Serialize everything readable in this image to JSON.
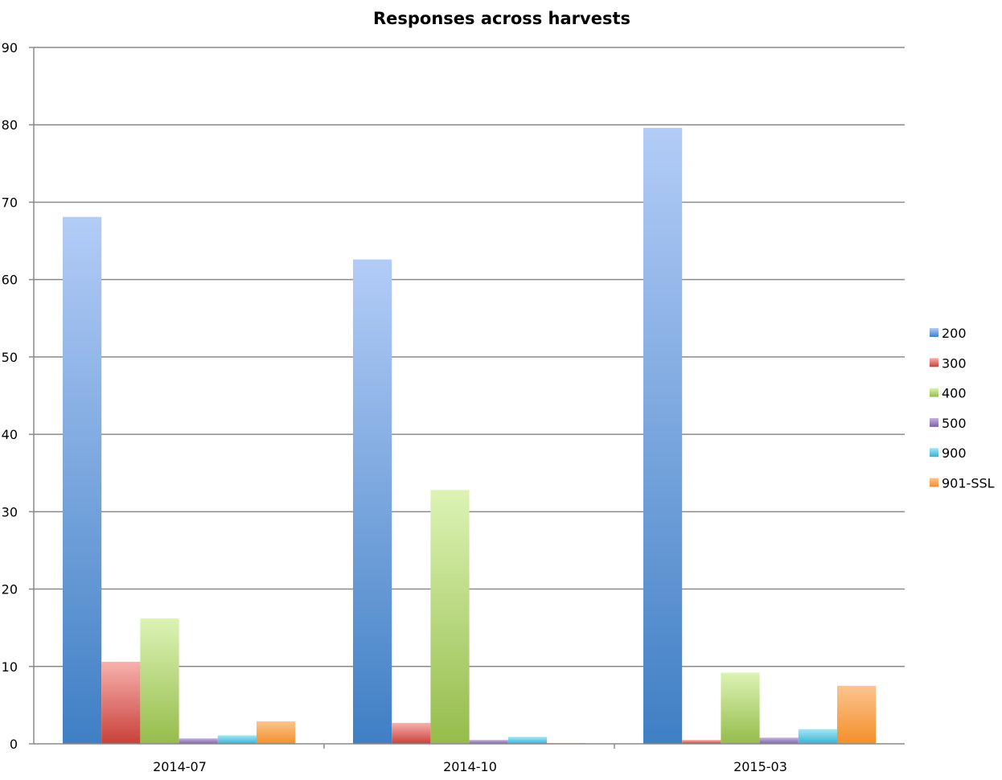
{
  "chart_data": {
    "type": "bar",
    "title": "Responses across harvests",
    "xlabel": "",
    "ylabel": "",
    "categories": [
      "2014-07",
      "2014-10",
      "2015-03"
    ],
    "ylim": [
      0,
      90
    ],
    "yticks": [
      0,
      10,
      20,
      30,
      40,
      50,
      60,
      70,
      80,
      90
    ],
    "grid": true,
    "legend_position": "right",
    "series": [
      {
        "name": "200",
        "values": [
          68.1,
          62.6,
          79.6
        ],
        "color_top": "#b3ccf7",
        "color_bottom": "#3f7fc4"
      },
      {
        "name": "300",
        "values": [
          10.6,
          2.7,
          0.5
        ],
        "color_top": "#f7b1ad",
        "color_bottom": "#c9403a"
      },
      {
        "name": "400",
        "values": [
          16.2,
          32.8,
          9.2
        ],
        "color_top": "#dcf3b4",
        "color_bottom": "#95bc4b"
      },
      {
        "name": "500",
        "values": [
          0.7,
          0.5,
          0.8
        ],
        "color_top": "#c4b3dc",
        "color_bottom": "#7d62a8"
      },
      {
        "name": "900",
        "values": [
          1.1,
          0.9,
          1.9
        ],
        "color_top": "#a7e6f4",
        "color_bottom": "#35b3d3"
      },
      {
        "name": "901-SSL",
        "values": [
          2.9,
          0.1,
          7.5
        ],
        "color_top": "#fbc48f",
        "color_bottom": "#f48f2a"
      }
    ]
  }
}
